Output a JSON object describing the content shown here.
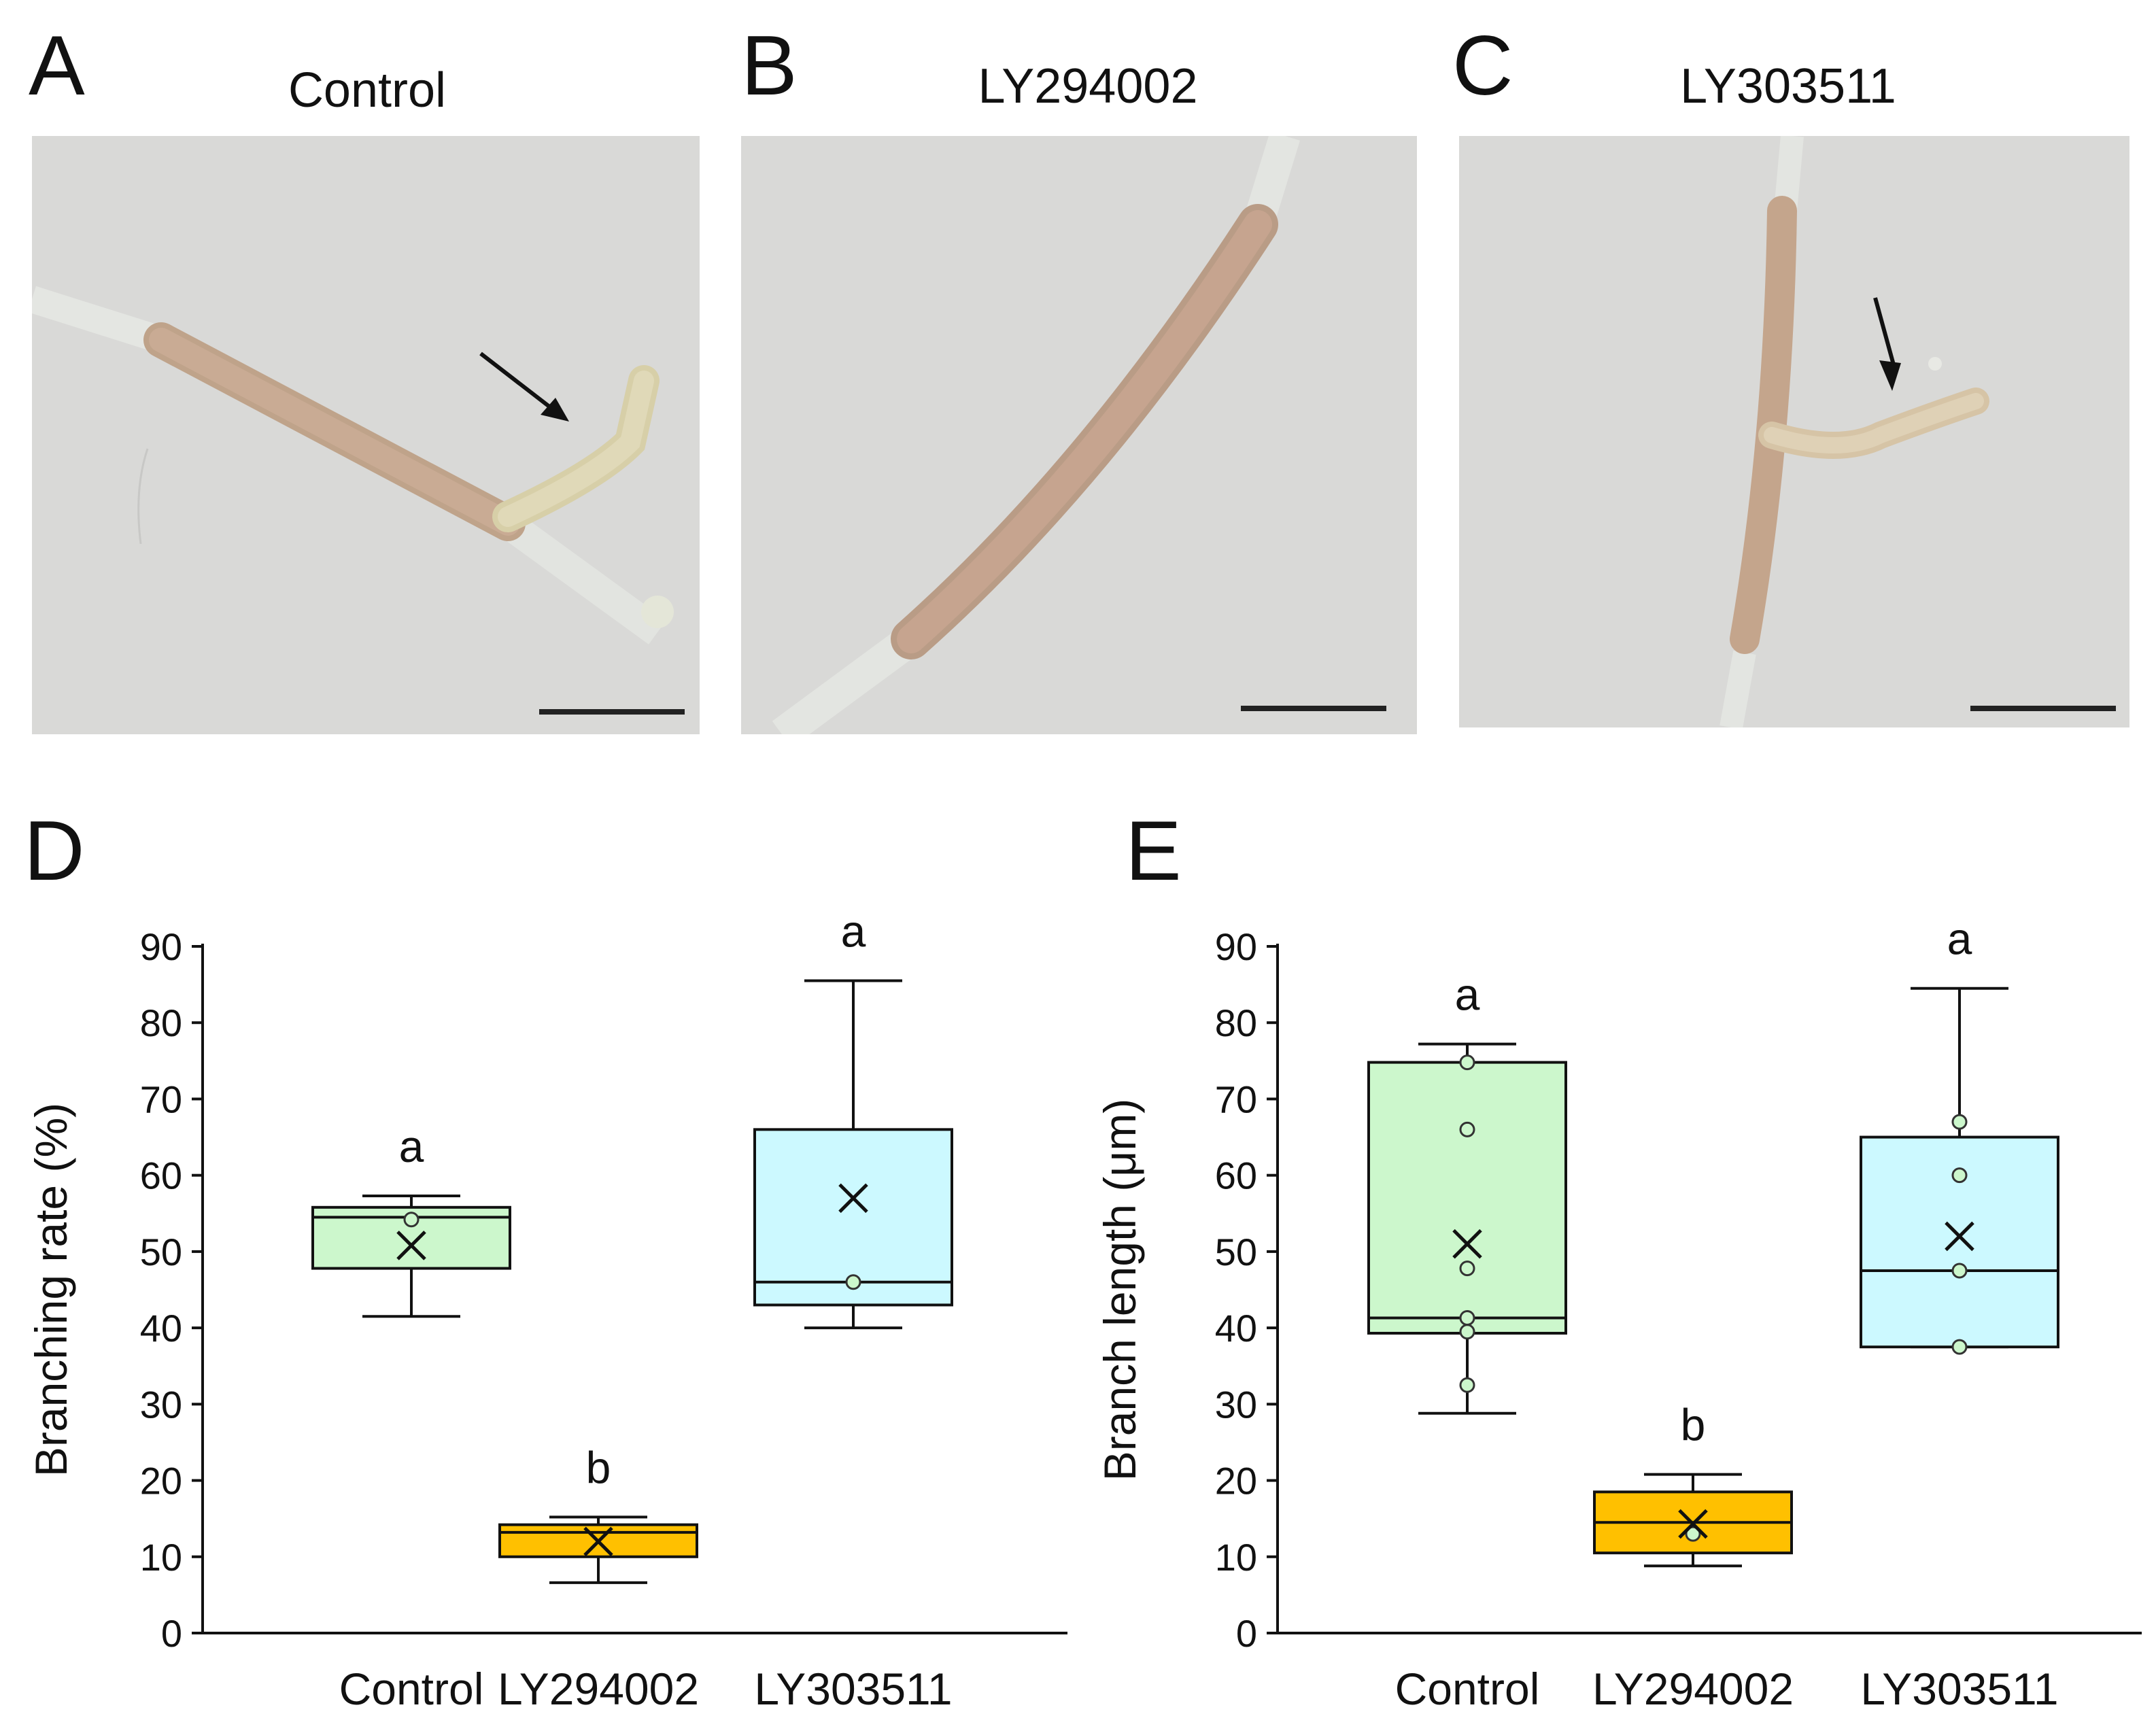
{
  "panels": {
    "A": {
      "letter": "A",
      "title": "Control"
    },
    "B": {
      "letter": "B",
      "title": "LY294002"
    },
    "C": {
      "letter": "C",
      "title": "LY303511"
    },
    "D": {
      "letter": "D"
    },
    "E": {
      "letter": "E"
    }
  },
  "colors": {
    "control_box": "#ccf7cc",
    "ly294002_box": "#ffc000",
    "ly303511_box": "#ccf9ff",
    "micrograph_bg": "#d9d9d7",
    "hypha_fill": "#c9a98e",
    "scale_bar": "#222222"
  },
  "chart_data": [
    {
      "type": "box",
      "panel": "D",
      "ylabel": "Branching rate (%)",
      "ylim": [
        0,
        90
      ],
      "yticks": [
        0,
        10,
        20,
        30,
        40,
        50,
        60,
        70,
        80,
        90
      ],
      "categories": [
        "Control",
        "LY294002",
        "LY303511"
      ],
      "boxes": [
        {
          "category": "Control",
          "min": 41.5,
          "q1": 47.8,
          "median": 54.5,
          "q3": 55.8,
          "max": 57.3,
          "mean": 50.8,
          "points": [
            54.2
          ],
          "letter": "a"
        },
        {
          "category": "LY294002",
          "min": 6.6,
          "q1": 10.0,
          "median": 13.2,
          "q3": 14.2,
          "max": 15.2,
          "mean": 12.0,
          "points": [],
          "letter": "b"
        },
        {
          "category": "LY303511",
          "min": 40.0,
          "q1": 43.0,
          "median": 46.0,
          "q3": 66.0,
          "max": 85.5,
          "mean": 57.0,
          "points": [
            46.0
          ],
          "letter": "a"
        }
      ]
    },
    {
      "type": "box",
      "panel": "E",
      "ylabel": "Branch length (μm)",
      "ylim": [
        0,
        90
      ],
      "yticks": [
        0,
        10,
        20,
        30,
        40,
        50,
        60,
        70,
        80,
        90
      ],
      "categories": [
        "Control",
        "LY294002",
        "LY303511"
      ],
      "boxes": [
        {
          "category": "Control",
          "min": 28.8,
          "q1": 39.3,
          "median": 41.3,
          "q3": 74.8,
          "max": 77.2,
          "mean": 51.0,
          "points": [
            74.8,
            66.0,
            47.8,
            41.3,
            39.5,
            32.5
          ],
          "letter": "a"
        },
        {
          "category": "LY294002",
          "min": 8.8,
          "q1": 10.5,
          "median": 14.5,
          "q3": 18.5,
          "max": 20.8,
          "mean": 14.3,
          "points": [
            13.0
          ],
          "letter": "b"
        },
        {
          "category": "LY303511",
          "min": 37.5,
          "q1": 37.5,
          "median": 47.5,
          "q3": 65.0,
          "max": 84.5,
          "mean": 52.0,
          "points": [
            67.0,
            60.0,
            47.5,
            37.5
          ],
          "letter": "a"
        }
      ]
    }
  ]
}
